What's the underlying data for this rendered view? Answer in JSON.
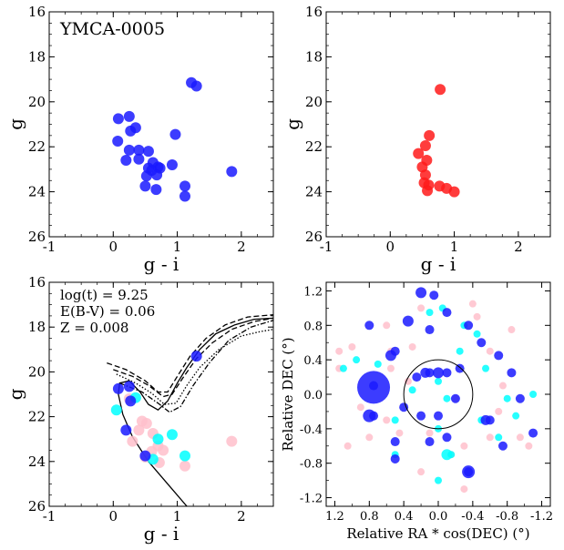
{
  "colors": {
    "blue": "#1a1aff",
    "red": "#ff1a1a",
    "cyan": "#00ffff",
    "pink": "#ffc0cb"
  },
  "chart_data": [
    {
      "id": "p1",
      "type": "scatter",
      "title": "YMCA-0005",
      "xlabel": "g - i",
      "ylabel": "g",
      "xlim": [
        -1,
        2.5
      ],
      "ylim": [
        26,
        16
      ],
      "y_inverted": true,
      "xticks": [
        "-1",
        "0",
        "1",
        "2"
      ],
      "yticks": [
        "16",
        "18",
        "20",
        "22",
        "24",
        "26"
      ],
      "series": [
        {
          "color": "blue",
          "points": [
            [
              1.22,
              19.15
            ],
            [
              1.3,
              19.3
            ],
            [
              0.08,
              20.75
            ],
            [
              0.25,
              20.65
            ],
            [
              0.35,
              21.15
            ],
            [
              0.27,
              21.3
            ],
            [
              0.97,
              21.45
            ],
            [
              0.07,
              21.75
            ],
            [
              0.25,
              22.15
            ],
            [
              0.4,
              22.15
            ],
            [
              0.55,
              22.2
            ],
            [
              0.62,
              22.7
            ],
            [
              0.4,
              22.55
            ],
            [
              0.2,
              22.6
            ],
            [
              0.55,
              22.95
            ],
            [
              0.7,
              22.9
            ],
            [
              0.73,
              22.95
            ],
            [
              0.6,
              23.05
            ],
            [
              0.92,
              22.8
            ],
            [
              0.52,
              23.3
            ],
            [
              0.68,
              23.25
            ],
            [
              1.12,
              23.75
            ],
            [
              1.12,
              24.2
            ],
            [
              0.5,
              23.75
            ],
            [
              0.67,
              23.9
            ],
            [
              1.85,
              23.1
            ]
          ]
        }
      ]
    },
    {
      "id": "p2",
      "type": "scatter",
      "xlabel": "g - i",
      "ylabel": "g",
      "xlim": [
        -1,
        2.5
      ],
      "ylim": [
        26,
        16
      ],
      "y_inverted": true,
      "xticks": [
        "-1",
        "0",
        "1",
        "2"
      ],
      "yticks": [
        "16",
        "18",
        "20",
        "22",
        "24",
        "26"
      ],
      "series": [
        {
          "color": "red",
          "points": [
            [
              0.78,
              19.45
            ],
            [
              0.61,
              21.5
            ],
            [
              0.55,
              21.95
            ],
            [
              0.44,
              22.3
            ],
            [
              0.57,
              22.6
            ],
            [
              0.5,
              22.9
            ],
            [
              0.55,
              23.25
            ],
            [
              0.53,
              23.6
            ],
            [
              0.6,
              23.7
            ],
            [
              0.58,
              23.95
            ],
            [
              0.77,
              23.75
            ],
            [
              0.88,
              23.85
            ],
            [
              1.0,
              24.0
            ]
          ]
        }
      ]
    },
    {
      "id": "p3",
      "type": "scatter",
      "xlabel": "g - i",
      "ylabel": "g",
      "xlim": [
        -1,
        2.5
      ],
      "ylim": [
        26,
        16
      ],
      "y_inverted": true,
      "xticks": [
        "-1",
        "0",
        "1",
        "2"
      ],
      "yticks": [
        "16",
        "18",
        "20",
        "22",
        "24",
        "26"
      ],
      "annotations": [
        "log(t) = 9.25",
        "E(B-V) = 0.06",
        "Z = 0.008"
      ],
      "isochrones": [
        {
          "style": "solid",
          "points": [
            [
              1.15,
              26.0
            ],
            [
              0.85,
              25.0
            ],
            [
              0.55,
              24.0
            ],
            [
              0.3,
              22.9
            ],
            [
              0.15,
              21.9
            ],
            [
              0.08,
              21.0
            ],
            [
              0.1,
              20.5
            ],
            [
              0.25,
              20.4
            ],
            [
              0.42,
              20.9
            ],
            [
              0.55,
              21.45
            ],
            [
              0.7,
              21.7
            ],
            [
              0.85,
              21.3
            ],
            [
              1.0,
              20.5
            ],
            [
              1.15,
              19.8
            ],
            [
              1.35,
              19.0
            ],
            [
              1.6,
              18.3
            ],
            [
              1.9,
              17.9
            ],
            [
              2.2,
              17.65
            ],
            [
              2.5,
              17.6
            ]
          ]
        },
        {
          "style": "dashed",
          "points": [
            [
              -0.1,
              19.6
            ],
            [
              0.2,
              19.9
            ],
            [
              0.5,
              20.4
            ],
            [
              0.7,
              20.9
            ],
            [
              0.85,
              20.9
            ],
            [
              1.0,
              20.2
            ],
            [
              1.2,
              19.3
            ],
            [
              1.45,
              18.5
            ],
            [
              1.75,
              17.9
            ],
            [
              2.1,
              17.55
            ],
            [
              2.5,
              17.45
            ]
          ]
        },
        {
          "style": "dashed",
          "points": [
            [
              0.0,
              19.9
            ],
            [
              0.3,
              20.2
            ],
            [
              0.55,
              20.6
            ],
            [
              0.78,
              21.1
            ],
            [
              0.92,
              21.0
            ],
            [
              1.08,
              20.3
            ],
            [
              1.3,
              19.4
            ],
            [
              1.55,
              18.7
            ],
            [
              1.85,
              18.1
            ],
            [
              2.2,
              17.75
            ],
            [
              2.5,
              17.6
            ]
          ]
        },
        {
          "style": "dotted",
          "points": [
            [
              0.05,
              20.1
            ],
            [
              0.35,
              20.5
            ],
            [
              0.6,
              20.95
            ],
            [
              0.8,
              21.45
            ],
            [
              0.98,
              21.4
            ],
            [
              1.15,
              20.6
            ],
            [
              1.35,
              19.8
            ],
            [
              1.65,
              19.0
            ],
            [
              2.0,
              18.4
            ],
            [
              2.3,
              18.2
            ],
            [
              2.5,
              18.1
            ]
          ]
        },
        {
          "style": "dashdot",
          "points": [
            [
              0.1,
              20.5
            ],
            [
              0.45,
              20.9
            ],
            [
              0.7,
              21.4
            ],
            [
              0.88,
              21.8
            ],
            [
              1.05,
              21.55
            ],
            [
              1.25,
              20.6
            ],
            [
              1.5,
              19.6
            ],
            [
              1.8,
              18.6
            ],
            [
              2.15,
              18.0
            ],
            [
              2.5,
              17.7
            ]
          ]
        }
      ],
      "series": [
        {
          "color": "pink",
          "points": [
            [
              0.45,
              22.2
            ],
            [
              0.52,
              22.3
            ],
            [
              0.62,
              22.75
            ],
            [
              0.4,
              22.6
            ],
            [
              0.7,
              23.3
            ],
            [
              0.6,
              23.55
            ],
            [
              0.78,
              23.5
            ],
            [
              0.5,
              23.8
            ],
            [
              0.3,
              23.1
            ],
            [
              1.12,
              24.2
            ],
            [
              1.85,
              23.1
            ],
            [
              0.25,
              21.2
            ],
            [
              0.72,
              24.05
            ]
          ]
        },
        {
          "color": "cyan",
          "points": [
            [
              0.05,
              21.7
            ],
            [
              0.35,
              21.15
            ],
            [
              0.7,
              23.0
            ],
            [
              0.92,
              22.8
            ],
            [
              1.12,
              23.75
            ],
            [
              0.62,
              23.9
            ]
          ]
        },
        {
          "color": "blue",
          "points": [
            [
              0.08,
              20.75
            ],
            [
              0.25,
              20.65
            ],
            [
              0.27,
              21.3
            ],
            [
              0.2,
              22.6
            ],
            [
              0.5,
              23.75
            ],
            [
              1.3,
              19.3
            ]
          ]
        }
      ]
    },
    {
      "id": "p4",
      "type": "scatter",
      "xlabel": "Relative RA * cos(DEC) (°)",
      "ylabel": "Relative DEC (°)",
      "xlim": [
        1.3,
        -1.3
      ],
      "ylim": [
        -1.3,
        1.3
      ],
      "x_inverted": true,
      "xticks": [
        "1.2",
        "0.8",
        "0.4",
        "0.0",
        "-0.4",
        "-0.8",
        "-1.2"
      ],
      "yticks": [
        "1.2",
        "0.8",
        "0.4",
        "0.0",
        "-0.4",
        "-0.8",
        "-1.2"
      ],
      "circle_radius": 0.4,
      "series": [
        {
          "color": "pink",
          "points": [
            [
              1.15,
              0.5
            ],
            [
              1.0,
              0.55
            ],
            [
              0.9,
              -0.15
            ],
            [
              0.6,
              0.8
            ],
            [
              0.55,
              0.5
            ],
            [
              0.45,
              -0.45
            ],
            [
              0.3,
              0.55
            ],
            [
              0.2,
              1.0
            ],
            [
              -0.4,
              1.05
            ],
            [
              -0.45,
              0.9
            ],
            [
              -0.6,
              0.5
            ],
            [
              -0.75,
              0.1
            ],
            [
              -0.95,
              -0.5
            ],
            [
              -1.05,
              -0.6
            ],
            [
              -0.6,
              -0.5
            ],
            [
              -0.3,
              -0.6
            ],
            [
              -0.15,
              -0.7
            ],
            [
              -0.3,
              -1.1
            ],
            [
              0.2,
              -0.9
            ],
            [
              0.6,
              -0.3
            ],
            [
              0.8,
              -0.5
            ],
            [
              1.05,
              -0.6
            ],
            [
              0.35,
              0.15
            ],
            [
              -0.2,
              -0.05
            ],
            [
              0.1,
              -0.45
            ],
            [
              0.55,
              0.3
            ],
            [
              -0.85,
              0.75
            ],
            [
              1.15,
              0.3
            ],
            [
              -0.7,
              -0.2
            ]
          ],
          "size": 4
        },
        {
          "color": "cyan",
          "points": [
            [
              1.1,
              0.3
            ],
            [
              0.95,
              0.4
            ],
            [
              0.7,
              0.35
            ],
            [
              0.1,
              0.95
            ],
            [
              -0.05,
              1.0
            ],
            [
              -0.3,
              0.8
            ],
            [
              -0.45,
              0.7
            ],
            [
              -0.55,
              0.3
            ],
            [
              -0.8,
              -0.05
            ],
            [
              -0.9,
              -0.25
            ],
            [
              -1.1,
              0.0
            ],
            [
              -0.5,
              -0.3
            ],
            [
              0.0,
              -0.4
            ],
            [
              0.5,
              -0.3
            ],
            [
              -0.15,
              -0.7
            ],
            [
              0.5,
              -0.7
            ],
            [
              -0.7,
              -0.5
            ],
            [
              0.0,
              0.15
            ],
            [
              -0.1,
              -0.05
            ],
            [
              0.3,
              0.05
            ],
            [
              -0.25,
              0.5
            ],
            [
              0.0,
              -1.0
            ]
          ],
          "size": 4
        },
        {
          "color": "blue",
          "points": [
            [
              0.75,
              0.1
            ],
            [
              0.75,
              -0.25
            ],
            [
              0.8,
              0.8
            ],
            [
              0.5,
              0.5
            ],
            [
              0.4,
              -0.15
            ],
            [
              0.1,
              0.75
            ],
            [
              0.05,
              1.15
            ],
            [
              -0.1,
              0.95
            ],
            [
              -0.35,
              0.8
            ],
            [
              0.1,
              0.25
            ],
            [
              -0.1,
              0.25
            ],
            [
              0.25,
              0.2
            ],
            [
              -0.25,
              0.3
            ],
            [
              -0.5,
              0.6
            ],
            [
              -0.7,
              0.45
            ],
            [
              -0.85,
              0.25
            ],
            [
              -0.95,
              -0.05
            ],
            [
              -1.1,
              -0.45
            ],
            [
              -0.35,
              -0.9
            ],
            [
              -0.6,
              -0.3
            ],
            [
              -0.75,
              -0.6
            ],
            [
              0.0,
              -0.25
            ],
            [
              0.2,
              -0.25
            ],
            [
              -0.2,
              -0.05
            ],
            [
              0.1,
              -0.55
            ],
            [
              0.5,
              -0.55
            ],
            [
              0.5,
              -0.75
            ],
            [
              -0.1,
              -0.5
            ]
          ],
          "size": 5
        }
      ],
      "big_points": [
        {
          "x": 0.75,
          "y": 0.08,
          "r": 18,
          "color": "blue"
        },
        {
          "x": 0.55,
          "y": 0.45,
          "r": 6,
          "color": "blue"
        },
        {
          "x": 0.2,
          "y": 1.18,
          "r": 6,
          "color": "blue"
        },
        {
          "x": -0.35,
          "y": -0.9,
          "r": 7,
          "color": "blue"
        },
        {
          "x": -0.1,
          "y": -0.7,
          "r": 6,
          "color": "cyan"
        },
        {
          "x": 0.8,
          "y": -0.25,
          "r": 7,
          "color": "blue"
        },
        {
          "x": -0.55,
          "y": -0.3,
          "r": 5.5,
          "color": "blue"
        },
        {
          "x": 0.35,
          "y": 0.85,
          "r": 6,
          "color": "blue"
        },
        {
          "x": 0.0,
          "y": 0.25,
          "r": 6,
          "color": "blue"
        },
        {
          "x": 0.15,
          "y": 0.25,
          "r": 5.5,
          "color": "blue"
        }
      ]
    }
  ]
}
